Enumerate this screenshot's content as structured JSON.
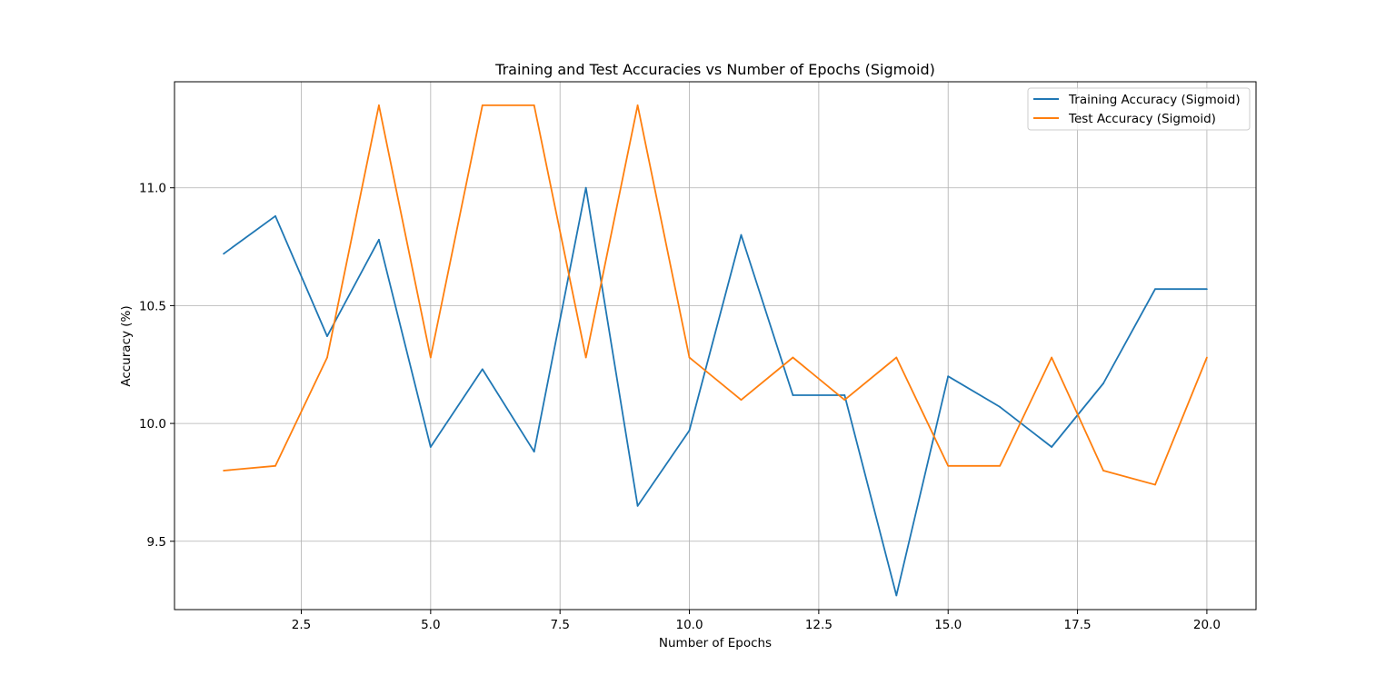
{
  "chart_data": {
    "type": "line",
    "title": "Training and Test Accuracies vs Number of Epochs (Sigmoid)",
    "xlabel": "Number of Epochs",
    "ylabel": "Accuracy (%)",
    "xlim": [
      0.05,
      20.95
    ],
    "ylim": [
      9.21,
      11.45
    ],
    "grid": true,
    "legend_position": "upper right",
    "x": [
      1,
      2,
      3,
      4,
      5,
      6,
      7,
      8,
      9,
      10,
      11,
      12,
      13,
      14,
      15,
      16,
      17,
      18,
      19,
      20
    ],
    "xticks": [
      2.5,
      5.0,
      7.5,
      10.0,
      12.5,
      15.0,
      17.5,
      20.0
    ],
    "xtick_labels": [
      "2.5",
      "5.0",
      "7.5",
      "10.0",
      "12.5",
      "15.0",
      "17.5",
      "20.0"
    ],
    "yticks": [
      9.5,
      10.0,
      10.5,
      11.0
    ],
    "ytick_labels": [
      "9.5",
      "10.0",
      "10.5",
      "11.0"
    ],
    "series": [
      {
        "name": "Training Accuracy (Sigmoid)",
        "color": "#1f77b4",
        "values": [
          10.72,
          10.88,
          10.37,
          10.78,
          9.9,
          10.23,
          9.88,
          11.0,
          9.65,
          9.97,
          10.8,
          10.12,
          10.12,
          9.27,
          10.2,
          10.07,
          9.9,
          10.17,
          10.57,
          10.57
        ]
      },
      {
        "name": "Test Accuracy (Sigmoid)",
        "color": "#ff7f0e",
        "values": [
          9.8,
          9.82,
          10.28,
          11.35,
          10.28,
          11.35,
          11.35,
          10.28,
          11.35,
          10.28,
          10.1,
          10.28,
          10.1,
          10.28,
          9.82,
          9.82,
          10.28,
          9.8,
          9.74,
          10.28
        ]
      }
    ]
  }
}
